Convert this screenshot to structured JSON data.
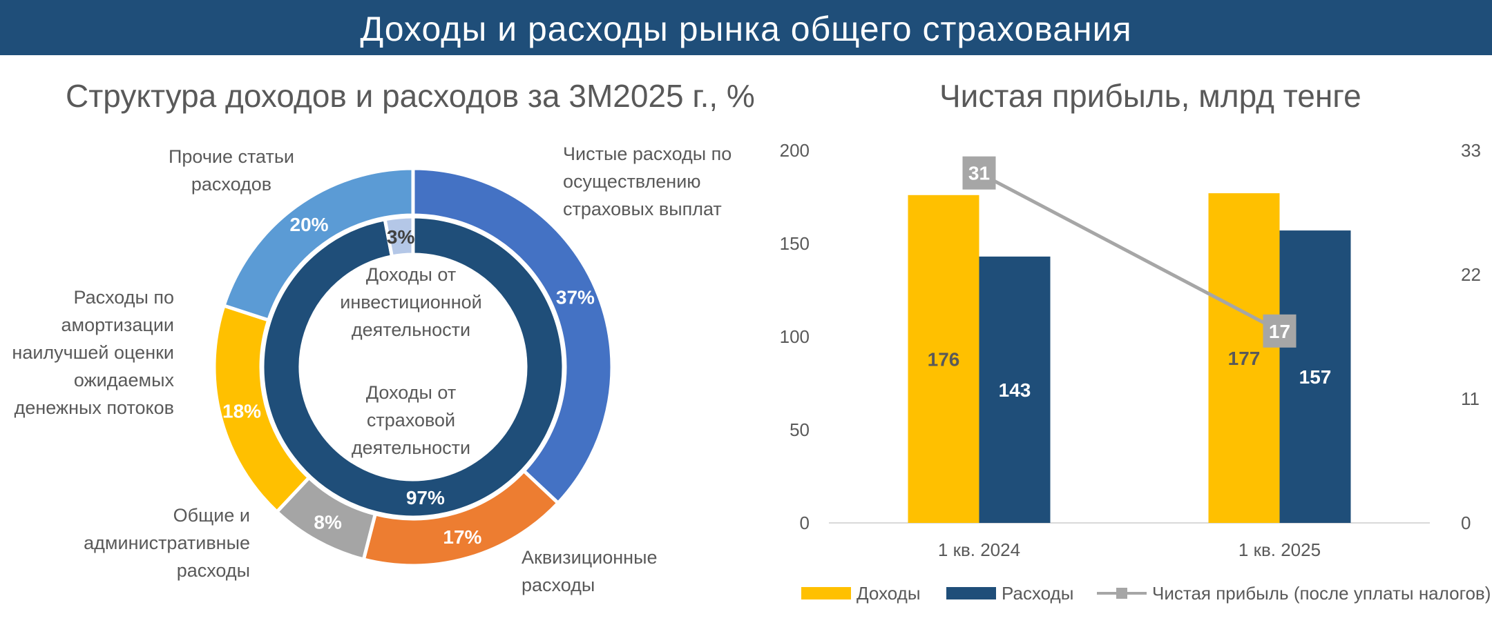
{
  "header": {
    "title": "Доходы и расходы рынка общего страхования"
  },
  "colors": {
    "banner": "#1f4e79",
    "income": "#ffc000",
    "expense": "#1f4e79",
    "profit": "#a6a6a6",
    "claims": "#4472c4",
    "acquisition": "#ed7d31",
    "admin": "#a5a5a5",
    "amortization": "#ffc000",
    "other": "#5b9bd5",
    "investment": "#b4c7e7"
  },
  "chart_data": [
    {
      "type": "pie",
      "title": "Структура доходов и расходов за 3М2025 г., %",
      "outer_ring": {
        "slices": [
          {
            "label": [
              "Чистые расходы по",
              "осуществлению",
              "страховых выплат"
            ],
            "value": 37,
            "value_label": "37%",
            "color": "#4472c4"
          },
          {
            "label": [
              "Аквизиционные",
              "расходы"
            ],
            "value": 17,
            "value_label": "17%",
            "color": "#ed7d31"
          },
          {
            "label": [
              "Общие и",
              "административные",
              "расходы"
            ],
            "value": 8,
            "value_label": "8%",
            "color": "#a5a5a5"
          },
          {
            "label": [
              "Расходы по",
              "амортизации",
              "наилучшей оценки",
              "ожидаемых",
              "денежных потоков"
            ],
            "value": 18,
            "value_label": "18%",
            "color": "#ffc000"
          },
          {
            "label": [
              "Прочие статьи",
              "расходов"
            ],
            "value": 20,
            "value_label": "20%",
            "color": "#5b9bd5"
          }
        ]
      },
      "inner_ring": {
        "slices": [
          {
            "label": [
              "Доходы от",
              "страховой",
              "деятельности"
            ],
            "value": 97,
            "value_label": "97%",
            "color": "#1f4e79"
          },
          {
            "label": [
              "Доходы от",
              "инвестиционной",
              "деятельности"
            ],
            "value": 3,
            "value_label": "3%",
            "color": "#b4c7e7"
          }
        ]
      }
    },
    {
      "type": "bar",
      "title": "Чистая прибыль, млрд тенге",
      "categories": [
        "1 кв. 2024",
        "1 кв. 2025"
      ],
      "series": [
        {
          "name": "Доходы",
          "type": "bar",
          "values": [
            176,
            177
          ],
          "color": "#ffc000"
        },
        {
          "name": "Расходы",
          "type": "bar",
          "values": [
            143,
            157
          ],
          "color": "#1f4e79"
        },
        {
          "name": "Чистая прибыль (после уплаты налогов) (R)",
          "type": "line",
          "axis": "right",
          "values": [
            31,
            17
          ],
          "color": "#a6a6a6"
        }
      ],
      "ylim": [
        0,
        200
      ],
      "yticks": [
        0,
        50,
        100,
        150,
        200
      ],
      "y2lim": [
        0,
        33
      ],
      "y2ticks": [
        0,
        11,
        22,
        33
      ],
      "legend": "bottom",
      "grid": false
    }
  ]
}
